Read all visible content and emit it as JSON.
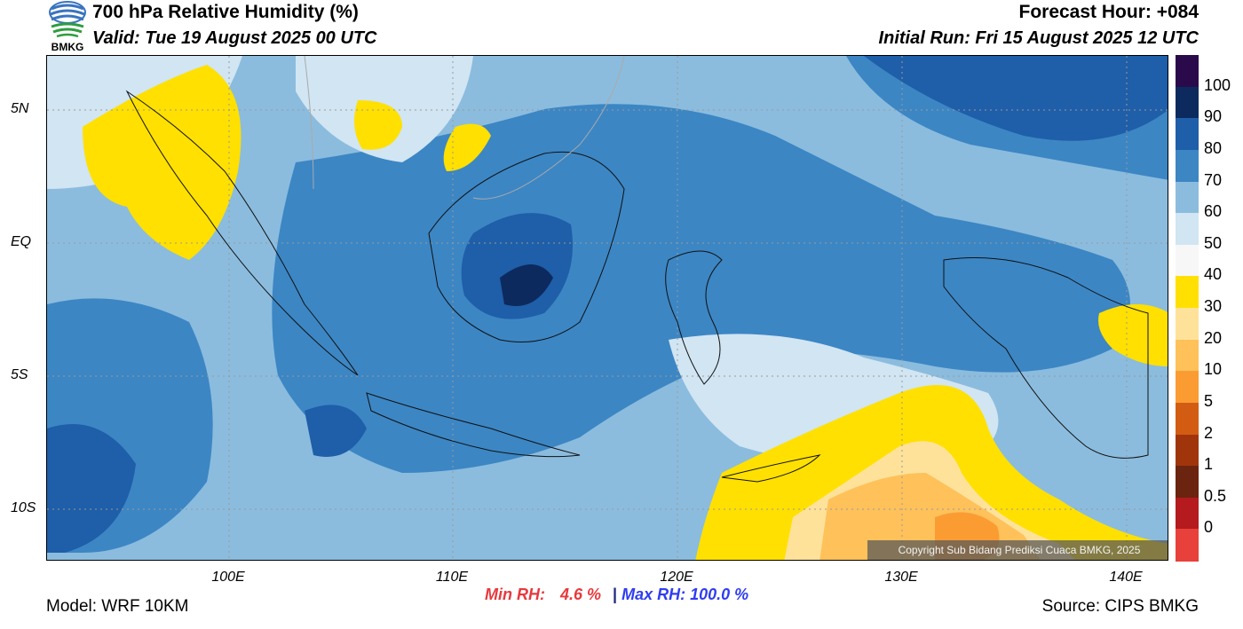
{
  "header": {
    "logo_label": "BMKG",
    "title": "700 hPa Relative Humidity (%)",
    "valid": "Valid: Tue 19 August 2025 00 UTC",
    "forecast_hour": "Forecast Hour: +084",
    "initial_run": "Initial Run: Fri 15 August 2025 12 UTC"
  },
  "axes": {
    "y_ticks": [
      "5N",
      "EQ",
      "5S",
      "10S"
    ],
    "x_ticks": [
      "100E",
      "110E",
      "120E",
      "130E",
      "140E"
    ]
  },
  "map": {
    "copyright": "Copyright Sub Bidang Prediksi Cuaca BMKG, 2025"
  },
  "colorbar": {
    "labels": [
      "100",
      "90",
      "80",
      "70",
      "60",
      "50",
      "40",
      "30",
      "20",
      "10",
      "5",
      "2",
      "1",
      "0.5",
      "0"
    ],
    "colors": [
      "#2a0a4a",
      "#0d2a5e",
      "#1f5ea8",
      "#3c86c4",
      "#8bbcde",
      "#d1e5f2",
      "#f7f7f7",
      "#ffe000",
      "#ffe29a",
      "#ffc15a",
      "#fb9c33",
      "#d35c13",
      "#a0350c",
      "#6b2410",
      "#b51a1e",
      "#e8403a"
    ]
  },
  "stats": {
    "min_label": "Min RH:",
    "min_value": "4.6 %",
    "separator": "|",
    "max_label": "Max RH: 100.0 %"
  },
  "footer": {
    "model": "Model: WRF 10KM",
    "source": "Source: CIPS BMKG"
  }
}
